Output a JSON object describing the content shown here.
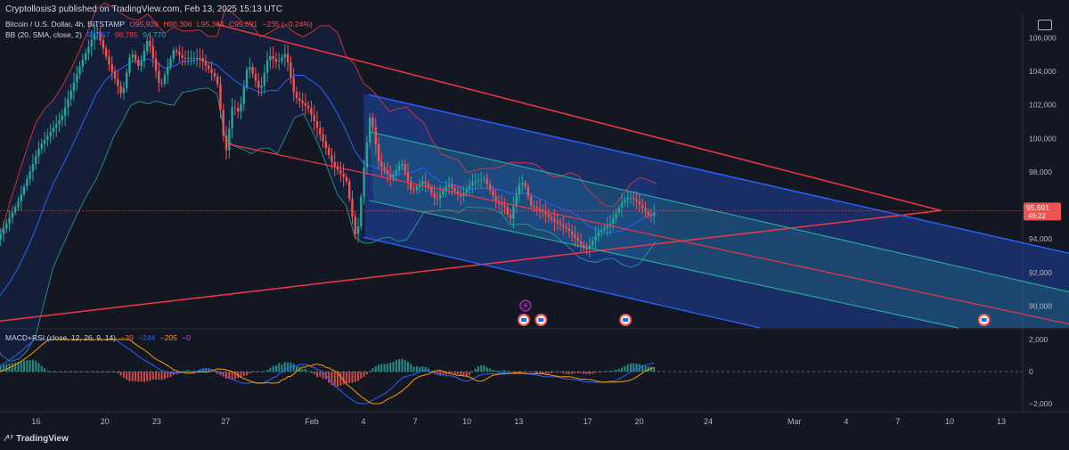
{
  "header": {
    "publisher_text": "Cryptollosis3 published on TradingView.com, Feb 13, 2025 15:13 UTC"
  },
  "legend_main": {
    "title": "Bitcoin / U.S. Dollar, 4h, BITSTAMP",
    "open": "O95,926",
    "high": "H96,306",
    "low": "L95,364",
    "close": "C95,691",
    "change": "−235 (−0.24%)"
  },
  "legend_bb": {
    "label": "BB (20, SMA, close, 2)",
    "basis": "96,757",
    "upper": "98,785",
    "lower": "94,770"
  },
  "legend_macd": {
    "label": "MACD+RSI (close, 12, 26, 9, 14)",
    "hist": "−39",
    "macd": "−244",
    "signal": "−205",
    "rsi": "−0"
  },
  "brand": "TradingView",
  "price_badge": {
    "price": "95,691",
    "countdown": "46:22"
  },
  "colors": {
    "background": "#131722",
    "up": "#26a69a",
    "down": "#ef5350",
    "trendline": "#f23645",
    "bb_basis": "#2962ff",
    "bb_band": "#26a69a",
    "bb_upper_outer": "#f23645",
    "pitchfork_outer": "#2962ff",
    "pitchfork_inner": "#26a69a",
    "macd_line": "#2962ff",
    "signal_line": "#ff9800"
  },
  "chart_data": {
    "type": "candlestick",
    "symbol": "Bitcoin / U.S. Dollar",
    "interval": "4h",
    "exchange": "BITSTAMP",
    "price_axis": {
      "ticks": [
        90000,
        92000,
        94000,
        96000,
        98000,
        100000,
        102000,
        104000,
        106000
      ],
      "tick_labels": [
        "90,000",
        "92,000",
        "94,000",
        "96,000",
        "98,000",
        "100,000",
        "102,000",
        "104,000",
        "106,000"
      ],
      "range": [
        88700,
        107400
      ]
    },
    "time_axis": {
      "labels": [
        "16",
        "20",
        "23",
        "27",
        "Feb",
        "4",
        "7",
        "10",
        "13",
        "17",
        "20",
        "24",
        "Mar",
        "4",
        "7",
        "10",
        "13"
      ],
      "label_days": [
        -16,
        -12,
        -9,
        -5,
        0,
        3,
        6,
        9,
        12,
        16,
        19,
        23,
        28,
        31,
        34,
        37,
        40
      ]
    },
    "price_path": [
      {
        "day": -19.0,
        "price": 89800
      },
      {
        "day": -18.3,
        "price": 93800
      },
      {
        "day": -17.0,
        "price": 96300
      },
      {
        "day": -15.8,
        "price": 99500
      },
      {
        "day": -14.5,
        "price": 101300
      },
      {
        "day": -13.5,
        "price": 104200
      },
      {
        "day": -12.5,
        "price": 106500
      },
      {
        "day": -11.8,
        "price": 104500
      },
      {
        "day": -11.0,
        "price": 102500
      },
      {
        "day": -10.5,
        "price": 105200
      },
      {
        "day": -10.0,
        "price": 104200
      },
      {
        "day": -9.5,
        "price": 106000
      },
      {
        "day": -8.8,
        "price": 103000
      },
      {
        "day": -8.0,
        "price": 105300
      },
      {
        "day": -7.5,
        "price": 104800
      },
      {
        "day": -6.5,
        "price": 104800
      },
      {
        "day": -5.5,
        "price": 103500
      },
      {
        "day": -5.0,
        "price": 99000
      },
      {
        "day": -4.6,
        "price": 102000
      },
      {
        "day": -4.2,
        "price": 101500
      },
      {
        "day": -3.7,
        "price": 104500
      },
      {
        "day": -3.0,
        "price": 102800
      },
      {
        "day": -2.5,
        "price": 105000
      },
      {
        "day": -2.0,
        "price": 104500
      },
      {
        "day": -1.5,
        "price": 105100
      },
      {
        "day": -1.0,
        "price": 102500
      },
      {
        "day": -0.2,
        "price": 101800
      },
      {
        "day": 0.5,
        "price": 100200
      },
      {
        "day": 1.2,
        "price": 98500
      },
      {
        "day": 2.0,
        "price": 97500
      },
      {
        "day": 2.6,
        "price": 93800
      },
      {
        "day": 3.0,
        "price": 98000
      },
      {
        "day": 3.4,
        "price": 101500
      },
      {
        "day": 3.9,
        "price": 98500
      },
      {
        "day": 4.6,
        "price": 97600
      },
      {
        "day": 5.2,
        "price": 98600
      },
      {
        "day": 5.8,
        "price": 96800
      },
      {
        "day": 6.5,
        "price": 97500
      },
      {
        "day": 7.2,
        "price": 96300
      },
      {
        "day": 7.9,
        "price": 97300
      },
      {
        "day": 8.6,
        "price": 96500
      },
      {
        "day": 9.3,
        "price": 97400
      },
      {
        "day": 10.0,
        "price": 97600
      },
      {
        "day": 10.7,
        "price": 96200
      },
      {
        "day": 11.2,
        "price": 95900
      },
      {
        "day": 11.5,
        "price": 95100
      },
      {
        "day": 12.0,
        "price": 97200
      },
      {
        "day": 12.3,
        "price": 97400
      },
      {
        "day": 12.7,
        "price": 96000
      },
      {
        "day": 13.3,
        "price": 95700
      },
      {
        "day": 14.0,
        "price": 95100
      },
      {
        "day": 14.8,
        "price": 94600
      },
      {
        "day": 15.5,
        "price": 93800
      },
      {
        "day": 15.9,
        "price": 93300
      },
      {
        "day": 16.6,
        "price": 94400
      },
      {
        "day": 17.3,
        "price": 94900
      },
      {
        "day": 18.0,
        "price": 96200
      },
      {
        "day": 18.4,
        "price": 96500
      },
      {
        "day": 18.8,
        "price": 96300
      },
      {
        "day": 19.3,
        "price": 95700
      },
      {
        "day": 19.6,
        "price": 95300
      },
      {
        "day": 20.0,
        "price": 95691
      }
    ],
    "bollinger_bands": {
      "length": 20,
      "source": "close",
      "mult": 2,
      "last": {
        "basis": 96757,
        "upper": 98785,
        "lower": 94770
      }
    },
    "drawings": {
      "descending_resistance": [
        {
          "day": -5.5,
          "price": 106800
        },
        {
          "day": 36.5,
          "price": 95700
        }
      ],
      "ascending_support": [
        {
          "day": -19.0,
          "price": 89000
        },
        {
          "day": 36.5,
          "price": 95700
        }
      ],
      "pitchfork_median": [
        {
          "day": -5.0,
          "price": 99700
        },
        {
          "day": 45.0,
          "price": 88700
        }
      ],
      "pitchfork_upper": [
        {
          "day": 3.3,
          "price": 102600
        },
        {
          "day": 45.0,
          "price": 92900
        }
      ],
      "pitchfork_lower": [
        {
          "day": 3.0,
          "price": 94100
        },
        {
          "day": 26.0,
          "price": 88700
        }
      ],
      "pitchfork_inner_upper": [
        {
          "day": 3.3,
          "price": 100400
        },
        {
          "day": 45.0,
          "price": 90600
        }
      ],
      "pitchfork_inner_lower": [
        {
          "day": 3.3,
          "price": 96300
        },
        {
          "day": 37.5,
          "price": 88700
        }
      ]
    },
    "macd_rsi": {
      "fast": 12,
      "slow": 26,
      "signal": 9,
      "rsi_length": 14,
      "axis_ticks": [
        2000,
        0,
        -2000
      ],
      "tick_labels": [
        "2,000",
        "0",
        "−2,000"
      ],
      "last": {
        "histogram": -39,
        "macd": -244,
        "signal": -205
      }
    }
  }
}
